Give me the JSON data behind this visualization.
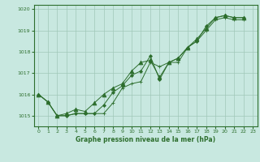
{
  "title": "Graphe pression niveau de la mer (hPa)",
  "bg_color": "#c8e8e0",
  "grid_color": "#a0c8b8",
  "line_color": "#2d6e2d",
  "ylim": [
    1014.5,
    1020.2
  ],
  "xlim": [
    -0.5,
    23.5
  ],
  "yticks": [
    1015,
    1016,
    1017,
    1018,
    1019,
    1020
  ],
  "xticks": [
    0,
    1,
    2,
    3,
    4,
    5,
    6,
    7,
    8,
    9,
    10,
    11,
    12,
    13,
    14,
    15,
    16,
    17,
    18,
    19,
    20,
    21,
    22,
    23
  ],
  "series": [
    {
      "x": [
        0,
        1,
        2,
        3,
        4,
        5,
        6,
        7,
        8,
        9,
        10,
        11,
        12,
        13,
        14,
        15,
        16,
        17,
        18,
        19,
        20,
        21,
        22
      ],
      "y": [
        1016.0,
        1015.65,
        1015.0,
        1015.0,
        1015.1,
        1015.1,
        1015.1,
        1015.1,
        1015.6,
        1016.3,
        1016.5,
        1016.6,
        1017.5,
        1017.3,
        1017.5,
        1017.5,
        1018.2,
        1018.5,
        1019.0,
        1019.5,
        1019.6,
        1019.5,
        1019.5
      ],
      "marker": "+",
      "ms": 3.5
    },
    {
      "x": [
        0,
        1,
        2,
        3,
        4,
        5,
        6,
        7,
        8,
        9,
        10,
        11,
        12,
        13,
        14,
        15,
        16,
        17,
        18,
        19,
        20,
        21,
        22
      ],
      "y": [
        1016.0,
        1015.65,
        1015.0,
        1015.0,
        1015.1,
        1015.1,
        1015.1,
        1015.5,
        1016.1,
        1016.4,
        1016.9,
        1017.1,
        1017.8,
        1016.7,
        1017.5,
        1017.7,
        1018.2,
        1018.5,
        1019.2,
        1019.6,
        1019.7,
        1019.6,
        1019.6
      ],
      "marker": "D",
      "ms": 2.0
    },
    {
      "x": [
        0,
        1,
        2,
        3,
        4,
        5,
        6,
        7,
        8,
        9,
        10,
        11,
        12,
        13,
        14,
        15,
        16,
        17,
        18,
        19,
        20,
        21,
        22
      ],
      "y": [
        1016.0,
        1015.65,
        1015.0,
        1015.1,
        1015.3,
        1015.2,
        1015.6,
        1016.0,
        1016.3,
        1016.5,
        1017.1,
        1017.5,
        1017.6,
        1016.8,
        1017.5,
        1017.7,
        1018.2,
        1018.6,
        1019.1,
        1019.6,
        1019.7,
        1019.6,
        1019.6
      ],
      "marker": "^",
      "ms": 3.5
    }
  ],
  "xlabel_fontsize": 5.5,
  "ylabel_fontsize": 5.5,
  "tick_labelsize": 4.5,
  "lw": 0.7
}
